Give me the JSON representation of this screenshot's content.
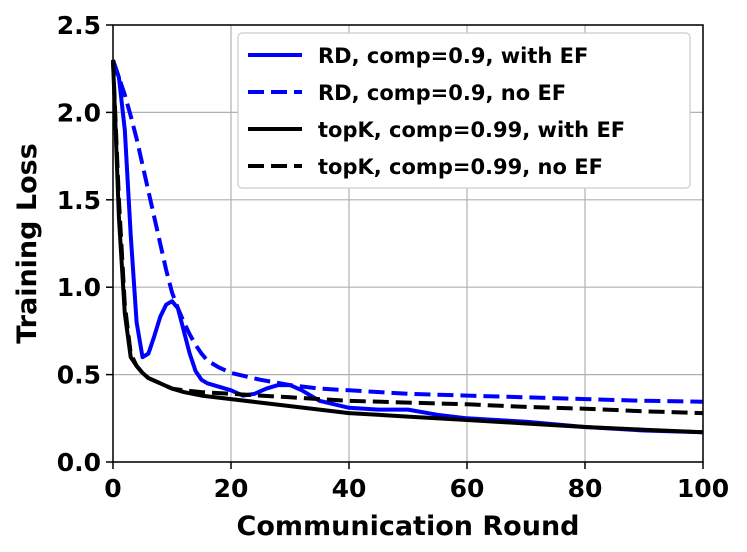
{
  "chart_data": {
    "type": "line",
    "title": "",
    "xlabel": "Communication Round",
    "ylabel": "Training Loss",
    "xlim": [
      0,
      100
    ],
    "ylim": [
      0,
      2.5
    ],
    "xticks": [
      0,
      20,
      40,
      60,
      80,
      100
    ],
    "yticks": [
      0.0,
      0.5,
      1.0,
      1.5,
      2.0,
      2.5
    ],
    "xtick_labels": [
      "0",
      "20",
      "40",
      "60",
      "80",
      "100"
    ],
    "ytick_labels": [
      "0.0",
      "0.5",
      "1.0",
      "1.5",
      "2.0",
      "2.5"
    ],
    "grid": true,
    "legend_position": "top-right",
    "series": [
      {
        "name": "RD, comp=0.9, with EF",
        "color": "#0000ff",
        "dash": "solid",
        "x": [
          0,
          1,
          2,
          3,
          4,
          5,
          6,
          7,
          8,
          9,
          10,
          11,
          12,
          13,
          14,
          15,
          16,
          18,
          20,
          22,
          24,
          26,
          28,
          30,
          32,
          35,
          40,
          45,
          50,
          55,
          60,
          70,
          80,
          90,
          100
        ],
        "y": [
          2.3,
          2.2,
          1.9,
          1.3,
          0.8,
          0.6,
          0.62,
          0.72,
          0.83,
          0.9,
          0.92,
          0.88,
          0.75,
          0.62,
          0.52,
          0.47,
          0.45,
          0.43,
          0.41,
          0.38,
          0.39,
          0.42,
          0.44,
          0.44,
          0.41,
          0.35,
          0.31,
          0.3,
          0.3,
          0.27,
          0.25,
          0.23,
          0.2,
          0.18,
          0.17
        ]
      },
      {
        "name": "RD, comp=0.9, no EF",
        "color": "#0000ff",
        "dash": "dashed",
        "x": [
          0,
          1,
          2,
          3,
          4,
          5,
          6,
          7,
          8,
          9,
          10,
          11,
          12,
          13,
          14,
          15,
          16,
          18,
          20,
          25,
          30,
          35,
          40,
          50,
          60,
          70,
          80,
          90,
          100
        ],
        "y": [
          2.3,
          2.2,
          2.1,
          1.98,
          1.85,
          1.7,
          1.55,
          1.4,
          1.25,
          1.1,
          0.97,
          0.88,
          0.8,
          0.73,
          0.67,
          0.62,
          0.58,
          0.54,
          0.51,
          0.47,
          0.44,
          0.42,
          0.41,
          0.39,
          0.38,
          0.37,
          0.36,
          0.35,
          0.345
        ]
      },
      {
        "name": "topK, comp=0.99, with EF",
        "color": "#000000",
        "dash": "solid",
        "x": [
          0,
          1,
          2,
          3,
          4,
          5,
          6,
          8,
          10,
          12,
          15,
          20,
          25,
          30,
          35,
          40,
          50,
          60,
          70,
          80,
          90,
          100
        ],
        "y": [
          2.3,
          1.4,
          0.85,
          0.6,
          0.55,
          0.51,
          0.48,
          0.45,
          0.42,
          0.4,
          0.38,
          0.36,
          0.34,
          0.32,
          0.3,
          0.28,
          0.26,
          0.24,
          0.22,
          0.2,
          0.185,
          0.17
        ]
      },
      {
        "name": "topK, comp=0.99, no EF",
        "color": "#000000",
        "dash": "dashed",
        "x": [
          0,
          1,
          2,
          3,
          4,
          5,
          6,
          8,
          10,
          12,
          15,
          20,
          25,
          30,
          35,
          40,
          50,
          60,
          70,
          80,
          90,
          100
        ],
        "y": [
          2.3,
          1.5,
          0.9,
          0.62,
          0.55,
          0.51,
          0.48,
          0.45,
          0.42,
          0.41,
          0.4,
          0.39,
          0.38,
          0.37,
          0.36,
          0.35,
          0.34,
          0.33,
          0.315,
          0.305,
          0.29,
          0.28
        ]
      }
    ]
  }
}
